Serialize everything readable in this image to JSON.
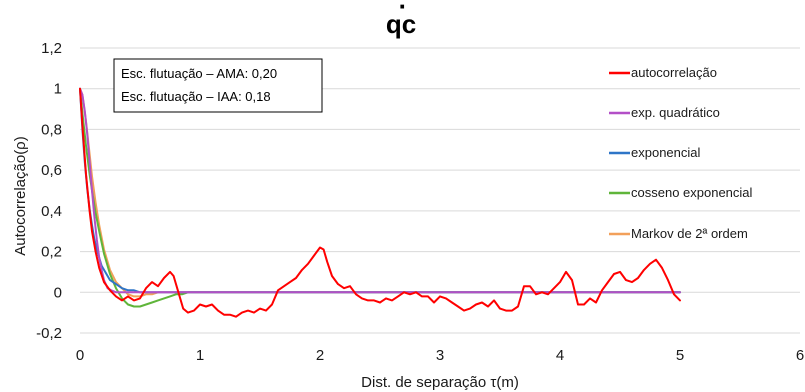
{
  "chart_data": {
    "type": "line",
    "title": "qc",
    "title_dot": "·",
    "xlabel": "Dist. de separação τ(m)",
    "ylabel": "Autocorrelação(ρ)",
    "xlim": [
      0,
      6
    ],
    "ylim": [
      -0.2,
      1.2
    ],
    "x_ticks": [
      0,
      1,
      2,
      3,
      4,
      5,
      6
    ],
    "y_ticks": [
      -0.2,
      0,
      0.2,
      0.4,
      0.6,
      0.8,
      1,
      1.2
    ],
    "y_tick_labels": [
      "-0,2",
      "0",
      "0,2",
      "0,4",
      "0,6",
      "0,8",
      "1",
      "1,2"
    ],
    "grid": "horizontal",
    "legend_position": "right",
    "annotations": [
      "Esc. flutuação – AMA: 0,20",
      "Esc. flutuação – IAA: 0,18"
    ],
    "series": [
      {
        "name": "autocorrelação",
        "color": "#ff0000",
        "x": [
          0,
          0.02,
          0.05,
          0.08,
          0.1,
          0.13,
          0.16,
          0.2,
          0.25,
          0.3,
          0.35,
          0.4,
          0.45,
          0.5,
          0.55,
          0.6,
          0.65,
          0.7,
          0.75,
          0.78,
          0.82,
          0.86,
          0.9,
          0.95,
          1.0,
          1.05,
          1.1,
          1.15,
          1.2,
          1.25,
          1.3,
          1.35,
          1.4,
          1.45,
          1.5,
          1.55,
          1.6,
          1.65,
          1.7,
          1.75,
          1.8,
          1.85,
          1.9,
          1.95,
          2.0,
          2.03,
          2.06,
          2.1,
          2.15,
          2.2,
          2.25,
          2.3,
          2.35,
          2.4,
          2.45,
          2.5,
          2.55,
          2.6,
          2.65,
          2.7,
          2.75,
          2.8,
          2.85,
          2.9,
          2.95,
          3.0,
          3.05,
          3.1,
          3.15,
          3.2,
          3.25,
          3.3,
          3.35,
          3.4,
          3.45,
          3.5,
          3.55,
          3.6,
          3.65,
          3.7,
          3.75,
          3.8,
          3.85,
          3.9,
          3.95,
          4.0,
          4.05,
          4.1,
          4.15,
          4.2,
          4.25,
          4.3,
          4.35,
          4.4,
          4.45,
          4.5,
          4.55,
          4.6,
          4.65,
          4.7,
          4.75,
          4.8,
          4.85,
          4.9,
          4.95,
          5.0
        ],
        "y": [
          1.0,
          0.82,
          0.58,
          0.4,
          0.3,
          0.2,
          0.12,
          0.05,
          0.01,
          -0.02,
          -0.04,
          -0.02,
          -0.04,
          -0.03,
          0.02,
          0.05,
          0.03,
          0.07,
          0.1,
          0.08,
          0.0,
          -0.08,
          -0.1,
          -0.09,
          -0.06,
          -0.07,
          -0.06,
          -0.09,
          -0.11,
          -0.11,
          -0.12,
          -0.1,
          -0.09,
          -0.1,
          -0.08,
          -0.09,
          -0.06,
          0.01,
          0.03,
          0.05,
          0.07,
          0.11,
          0.14,
          0.18,
          0.22,
          0.21,
          0.15,
          0.08,
          0.04,
          0.02,
          0.03,
          -0.01,
          -0.03,
          -0.04,
          -0.04,
          -0.05,
          -0.03,
          -0.04,
          -0.02,
          -0.0,
          -0.01,
          0.0,
          -0.02,
          -0.02,
          -0.05,
          -0.02,
          -0.03,
          -0.05,
          -0.07,
          -0.09,
          -0.08,
          -0.06,
          -0.05,
          -0.07,
          -0.04,
          -0.08,
          -0.09,
          -0.09,
          -0.07,
          0.03,
          0.03,
          -0.01,
          -0.0,
          -0.01,
          0.02,
          0.05,
          0.1,
          0.06,
          -0.06,
          -0.06,
          -0.03,
          -0.05,
          0.01,
          0.05,
          0.09,
          0.1,
          0.06,
          0.05,
          0.07,
          0.11,
          0.14,
          0.16,
          0.12,
          0.06,
          -0.01,
          -0.04
        ]
      },
      {
        "name": "exp. quadrático",
        "color": "#b34fc7",
        "x": [
          0,
          0.02,
          0.04,
          0.06,
          0.08,
          0.1,
          0.12,
          0.14,
          0.16,
          0.18,
          0.2,
          0.23,
          0.26,
          0.3,
          0.35,
          0.4,
          0.5,
          0.6,
          1.0,
          2.0,
          3.0,
          4.0,
          5.0
        ],
        "y": [
          1.0,
          0.97,
          0.89,
          0.78,
          0.64,
          0.5,
          0.37,
          0.26,
          0.17,
          0.11,
          0.06,
          0.02,
          0.01,
          0.0,
          0.0,
          0.0,
          0.0,
          0.0,
          0.0,
          0.0,
          0.0,
          0.0,
          0.0
        ]
      },
      {
        "name": "exponencial",
        "color": "#2e75c7",
        "x": [
          0,
          0.02,
          0.04,
          0.06,
          0.08,
          0.1,
          0.12,
          0.15,
          0.18,
          0.21,
          0.25,
          0.3,
          0.35,
          0.4,
          0.45,
          0.5,
          0.6,
          0.7,
          0.8,
          1.0,
          2.0,
          3.0,
          4.0,
          5.0
        ],
        "y": [
          1.0,
          0.8,
          0.64,
          0.51,
          0.41,
          0.33,
          0.26,
          0.19,
          0.13,
          0.1,
          0.06,
          0.04,
          0.02,
          0.01,
          0.01,
          0.0,
          0.0,
          0.0,
          0.0,
          0.0,
          0.0,
          0.0,
          0.0,
          0.0
        ]
      },
      {
        "name": "cosseno exponencial",
        "color": "#5fb53a",
        "x": [
          0,
          0.02,
          0.05,
          0.08,
          0.1,
          0.13,
          0.16,
          0.2,
          0.25,
          0.3,
          0.35,
          0.4,
          0.45,
          0.5,
          0.55,
          0.6,
          0.65,
          0.7,
          0.75,
          0.8,
          0.85,
          0.9,
          1.0,
          1.2,
          2.0,
          3.0,
          4.0,
          5.0
        ],
        "y": [
          1.0,
          0.88,
          0.72,
          0.58,
          0.5,
          0.39,
          0.3,
          0.19,
          0.09,
          0.02,
          -0.03,
          -0.06,
          -0.07,
          -0.07,
          -0.06,
          -0.05,
          -0.04,
          -0.03,
          -0.02,
          -0.01,
          -0.01,
          0.0,
          0.0,
          0.0,
          0.0,
          0.0,
          0.0,
          0.0
        ]
      },
      {
        "name": "Markov de 2ª ordem",
        "color": "#f2a05a",
        "x": [
          0,
          0.02,
          0.05,
          0.08,
          0.1,
          0.13,
          0.16,
          0.2,
          0.25,
          0.3,
          0.35,
          0.4,
          0.45,
          0.5,
          0.55,
          0.6,
          0.65,
          0.7,
          0.8,
          0.9,
          1.0,
          2.0,
          3.0,
          4.0,
          5.0
        ],
        "y": [
          1.0,
          0.97,
          0.84,
          0.68,
          0.57,
          0.44,
          0.33,
          0.21,
          0.11,
          0.05,
          0.02,
          -0.01,
          -0.02,
          -0.02,
          -0.01,
          -0.01,
          0.0,
          0.0,
          0.0,
          0.0,
          0.0,
          0.0,
          0.0,
          0.0,
          0.0
        ]
      }
    ]
  }
}
